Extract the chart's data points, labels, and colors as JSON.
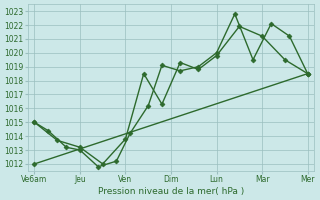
{
  "x_labels": [
    "Ve6am",
    "Jeu",
    "Ven",
    "Dim",
    "Lun",
    "Mar",
    "Mer"
  ],
  "x_ticks": [
    0,
    1,
    2,
    3,
    4,
    5,
    6
  ],
  "line1_zigzag": {
    "x": [
      0,
      0.3,
      0.7,
      1.0,
      1.4,
      1.8,
      2.1,
      2.5,
      2.8,
      3.2,
      3.6,
      4.0,
      4.4,
      4.8,
      5.2,
      5.6,
      6.0
    ],
    "y": [
      1015.0,
      1014.4,
      1013.2,
      1013.0,
      1011.8,
      1012.2,
      1014.2,
      1016.2,
      1019.1,
      1018.7,
      1019.0,
      1020.0,
      1022.8,
      1019.5,
      1022.1,
      1021.2,
      1018.5
    ],
    "color": "#2d6a2d",
    "marker": "D",
    "markersize": 2.5,
    "linewidth": 1.0
  },
  "line2_zigzag": {
    "x": [
      0,
      0.5,
      1.0,
      1.5,
      2.0,
      2.4,
      2.8,
      3.2,
      3.6,
      4.0,
      4.5,
      5.0,
      5.5,
      6.0
    ],
    "y": [
      1015.0,
      1013.7,
      1013.2,
      1012.0,
      1013.8,
      1018.5,
      1016.3,
      1019.3,
      1018.8,
      1019.8,
      1021.9,
      1021.2,
      1019.5,
      1018.5
    ],
    "color": "#2d6a2d",
    "marker": "D",
    "markersize": 2.5,
    "linewidth": 1.0
  },
  "line3_straight": {
    "x": [
      0,
      6.0
    ],
    "y": [
      1012.0,
      1018.5
    ],
    "color": "#2d6a2d",
    "marker": "D",
    "markersize": 2.5,
    "linewidth": 1.0
  },
  "ylim": [
    1011.5,
    1023.5
  ],
  "yticks": [
    1012,
    1013,
    1014,
    1015,
    1016,
    1017,
    1018,
    1019,
    1020,
    1021,
    1022,
    1023
  ],
  "xlabel": "Pression niveau de la mer( hPa )",
  "bg_color": "#cce8e8",
  "grid_color": "#9bbfbf",
  "line_color": "#2d6a2d",
  "tick_color": "#2d6a2d",
  "label_color": "#2d6a2d",
  "xlim": [
    -0.15,
    6.15
  ]
}
